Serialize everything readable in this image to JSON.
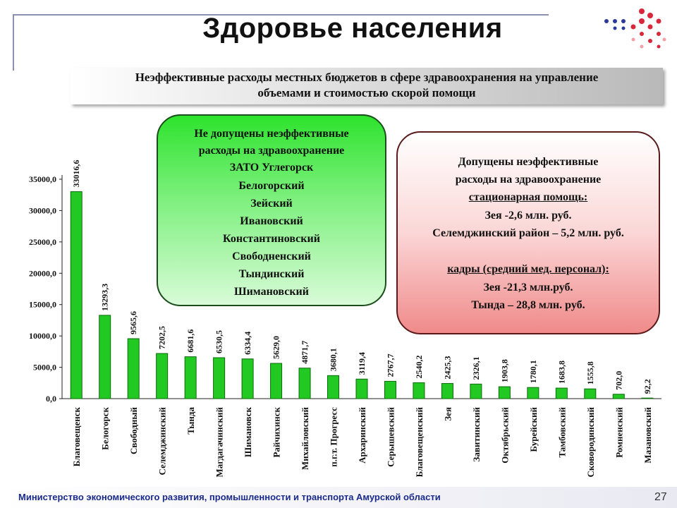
{
  "header": {
    "title": "Здоровье населения",
    "subtitle_line1": "Неэффективные расходы местных бюджетов в сфере здравоохранения на управление",
    "subtitle_line2": "объемами и стоимостью скорой помощи"
  },
  "green_box": {
    "lines": [
      "Не допущены неэффективные",
      "расходы на здравоохранение",
      "ЗАТО Углегорск",
      "Белогорский",
      "Зейский",
      "Ивановский",
      "Константиновский",
      "Свободненский",
      "Тындинский",
      "Шимановский"
    ],
    "color": "#2ee32e"
  },
  "red_box": {
    "lines": [
      "Допущены неэффективные",
      "расходы на здравоохранение",
      "стационарная помощь:",
      "Зея -2,6 млн. руб.",
      "Селемджинский район – 5,2 млн. руб.",
      "",
      "кадры (средний мед. персонал):",
      "Зея -21,3 млн.руб.",
      "Тында – 28,8 млн. руб."
    ],
    "color": "#f08a8a"
  },
  "chart_data": {
    "type": "bar",
    "categories": [
      "Благовещенск",
      "Белогорск",
      "Свободный",
      "Селемджинский",
      "Тында",
      "Магдагачинский",
      "Шимановск",
      "Райчихинск",
      "Михайловский",
      "п.г.т. Прогресс",
      "Архаринский",
      "Серышевский",
      "Благовещенский",
      "Зея",
      "Завитинский",
      "Октябрьский",
      "Бурейский",
      "Тамбовский",
      "Сковородинский",
      "Ромненский",
      "Мазановский"
    ],
    "values": [
      33016.6,
      13293.3,
      9565.6,
      7202.5,
      6681.6,
      6530.5,
      6334.4,
      5629.0,
      4871.7,
      3680.1,
      3119.4,
      2767.7,
      2540.2,
      2425.3,
      2326.1,
      1903.8,
      1780.1,
      1683.8,
      1555.8,
      702.0,
      92.2
    ],
    "value_labels": [
      "33016,6",
      "13293,3",
      "9565,6",
      "7202,5",
      "6681,6",
      "6530,5",
      "6334,4",
      "5629,0",
      "4871,7",
      "3680,1",
      "3119,4",
      "2767,7",
      "2540,2",
      "2425,3",
      "2326,1",
      "1903,8",
      "1780,1",
      "1683,8",
      "1555,8",
      "702,0",
      "92,2"
    ],
    "y_ticks": [
      "0,0",
      "5000,0",
      "10000,0",
      "15000,0",
      "20000,0",
      "25000,0",
      "30000,0",
      "35000,0"
    ],
    "ylim": [
      0,
      35000
    ],
    "bar_color": "#22c922",
    "grid": false
  },
  "footer": {
    "text": "Министерство экономического развития, промышленности и транспорта Амурской области",
    "page_number": "27"
  }
}
